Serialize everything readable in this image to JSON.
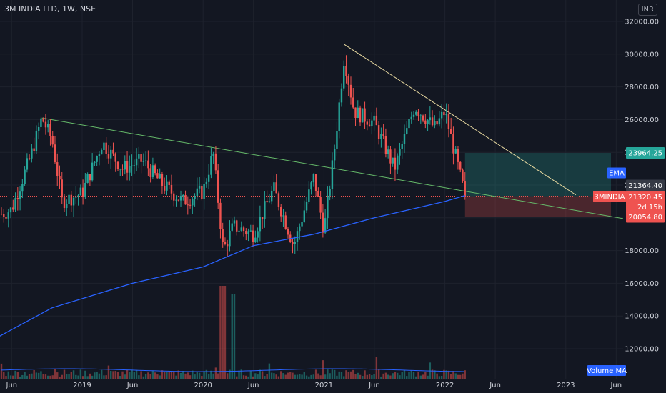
{
  "header": {
    "title": "3M INDIA LTD, 1W, NSE",
    "currency": "INR"
  },
  "labels": {
    "target_price": "23964.25",
    "ema_name": "EMA",
    "ema_value": "21364.40",
    "symbol": "3MINDIA",
    "last_price": "21320.45",
    "countdown": "2d 15h",
    "stop_price": "20054.80",
    "volume_ma": "Volume MA"
  },
  "colors": {
    "up": "#26a69a",
    "down": "#ef5350",
    "ema": "#2962ff",
    "trend_green": "#66bb6a",
    "trend_yellow": "#e8d9a0"
  },
  "chart_data": {
    "type": "candlestick",
    "y_ticks": [
      "32000.00",
      "30000.00",
      "28000.00",
      "26000.00",
      "24000.00",
      "22000.00",
      "18000.00",
      "16000.00",
      "14000.00",
      "12000.00"
    ],
    "x_ticks": [
      "Jun",
      "2019",
      "Jun",
      "2020",
      "Jun",
      "2021",
      "Jun",
      "2022",
      "Jun",
      "2023",
      "Jun"
    ],
    "ylim": [
      10500,
      32600
    ],
    "price_keypoints": [
      [
        "2018-04",
        20000
      ],
      [
        "2018-06",
        20500
      ],
      [
        "2018-08",
        24000
      ],
      [
        "2018-09",
        26100
      ],
      [
        "2018-10",
        24800
      ],
      [
        "2018-11",
        21000
      ],
      [
        "2019-01",
        21500
      ],
      [
        "2019-03",
        24600
      ],
      [
        "2019-05",
        23000
      ],
      [
        "2019-07",
        23500
      ],
      [
        "2019-09",
        22000
      ],
      [
        "2019-11",
        21000
      ],
      [
        "2020-01",
        21600
      ],
      [
        "2020-02",
        24000
      ],
      [
        "2020-03",
        18000
      ],
      [
        "2020-04",
        19500
      ],
      [
        "2020-06",
        19000
      ],
      [
        "2020-08",
        21800
      ],
      [
        "2020-10",
        18300
      ],
      [
        "2020-12",
        22500
      ],
      [
        "2021-01",
        19200
      ],
      [
        "2021-02",
        24000
      ],
      [
        "2021-03",
        29800
      ],
      [
        "2021-04",
        26500
      ],
      [
        "2021-06",
        25800
      ],
      [
        "2021-08",
        23000
      ],
      [
        "2021-10",
        26800
      ],
      [
        "2021-12",
        25500
      ],
      [
        "2022-01",
        26500
      ],
      [
        "2022-03",
        21320
      ]
    ],
    "ema_keypoints": [
      [
        "2018-04",
        12500
      ],
      [
        "2018-10",
        14500
      ],
      [
        "2019-06",
        16000
      ],
      [
        "2020-01",
        17000
      ],
      [
        "2020-06",
        18300
      ],
      [
        "2020-12",
        19000
      ],
      [
        "2021-06",
        20000
      ],
      [
        "2022-01",
        21000
      ],
      [
        "2022-03",
        21364.4
      ]
    ],
    "trendlines": [
      {
        "from": [
          "2018-09",
          26100
        ],
        "to": [
          "2023-07",
          19500
        ]
      },
      {
        "from": [
          "2021-03",
          30600
        ],
        "to": [
          "2023-02",
          21400
        ]
      }
    ],
    "position_box": {
      "entry": 21320.45,
      "target": 23964.25,
      "stop": 20054.8
    },
    "volume_series": "Volume MA"
  }
}
